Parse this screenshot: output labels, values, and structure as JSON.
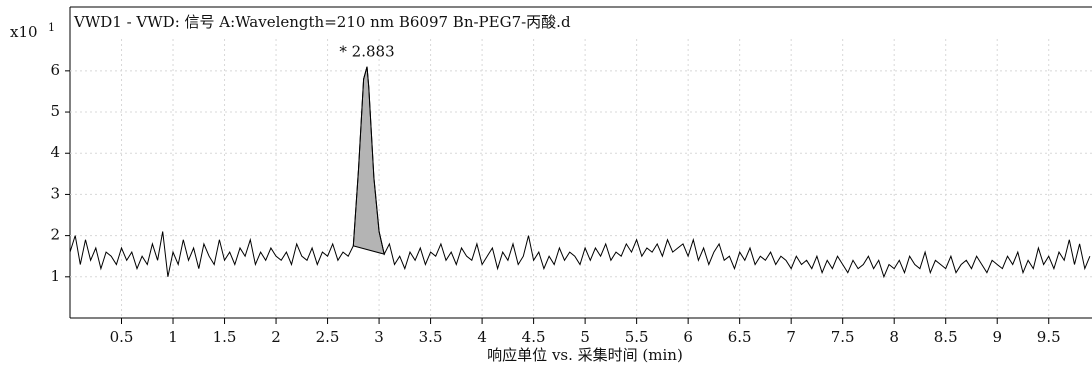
{
  "chart_data": {
    "type": "line",
    "title": "VWD1 - VWD: 信号 A:Wavelength=210 nm B6097 Bn-PEG7-丙酸.d",
    "y_label": "x10",
    "y_label_exponent": "1",
    "x_label": "响应单位 vs. 采集时间 (min)",
    "xlim": [
      0,
      9.92
    ],
    "ylim": [
      0,
      7.55
    ],
    "xticks": [
      0.5,
      1,
      1.5,
      2,
      2.5,
      3,
      3.5,
      4,
      4.5,
      5,
      5.5,
      6,
      6.5,
      7,
      7.5,
      8,
      8.5,
      9,
      9.5
    ],
    "yticks": [
      1,
      2,
      3,
      4,
      5,
      6
    ],
    "grid": true,
    "color": "#000000",
    "shade_color": "#b4b4b4",
    "shaded_peak": {
      "x_start": 2.75,
      "x_end": 3.05
    },
    "annotations": [
      {
        "text": "* 2.883",
        "x": 2.883,
        "y": 6.1
      }
    ],
    "x": [
      0,
      0.05,
      0.1,
      0.15,
      0.2,
      0.25,
      0.3,
      0.35,
      0.4,
      0.45,
      0.5,
      0.55,
      0.6,
      0.65,
      0.7,
      0.75,
      0.8,
      0.85,
      0.9,
      0.95,
      1.0,
      1.05,
      1.1,
      1.15,
      1.2,
      1.25,
      1.3,
      1.35,
      1.4,
      1.45,
      1.5,
      1.55,
      1.6,
      1.65,
      1.7,
      1.75,
      1.8,
      1.85,
      1.9,
      1.95,
      2.0,
      2.05,
      2.1,
      2.15,
      2.2,
      2.25,
      2.3,
      2.35,
      2.4,
      2.45,
      2.5,
      2.55,
      2.6,
      2.65,
      2.7,
      2.75,
      2.8,
      2.85,
      2.883,
      2.9,
      2.95,
      3.0,
      3.05,
      3.1,
      3.15,
      3.2,
      3.25,
      3.3,
      3.35,
      3.4,
      3.45,
      3.5,
      3.55,
      3.6,
      3.65,
      3.7,
      3.75,
      3.8,
      3.85,
      3.9,
      3.95,
      4.0,
      4.05,
      4.1,
      4.15,
      4.2,
      4.25,
      4.3,
      4.35,
      4.4,
      4.45,
      4.5,
      4.55,
      4.6,
      4.65,
      4.7,
      4.75,
      4.8,
      4.85,
      4.9,
      4.95,
      5.0,
      5.05,
      5.1,
      5.15,
      5.2,
      5.25,
      5.3,
      5.35,
      5.4,
      5.45,
      5.5,
      5.55,
      5.6,
      5.65,
      5.7,
      5.75,
      5.8,
      5.85,
      5.9,
      5.95,
      6.0,
      6.05,
      6.1,
      6.15,
      6.2,
      6.25,
      6.3,
      6.35,
      6.4,
      6.45,
      6.5,
      6.55,
      6.6,
      6.65,
      6.7,
      6.75,
      6.8,
      6.85,
      6.9,
      6.95,
      7.0,
      7.05,
      7.1,
      7.15,
      7.2,
      7.25,
      7.3,
      7.35,
      7.4,
      7.45,
      7.5,
      7.55,
      7.6,
      7.65,
      7.7,
      7.75,
      7.8,
      7.85,
      7.9,
      7.95,
      8.0,
      8.05,
      8.1,
      8.15,
      8.2,
      8.25,
      8.3,
      8.35,
      8.4,
      8.45,
      8.5,
      8.55,
      8.6,
      8.65,
      8.7,
      8.75,
      8.8,
      8.85,
      8.9,
      8.95,
      9.0,
      9.05,
      9.1,
      9.15,
      9.2,
      9.25,
      9.3,
      9.35,
      9.4,
      9.45,
      9.5,
      9.55,
      9.6,
      9.65,
      9.7,
      9.75,
      9.8,
      9.85,
      9.9
    ],
    "values": [
      1.6,
      2.0,
      1.3,
      1.9,
      1.4,
      1.7,
      1.2,
      1.6,
      1.5,
      1.3,
      1.7,
      1.4,
      1.6,
      1.2,
      1.5,
      1.3,
      1.8,
      1.4,
      2.1,
      1.0,
      1.6,
      1.3,
      1.9,
      1.4,
      1.7,
      1.2,
      1.8,
      1.5,
      1.3,
      1.9,
      1.4,
      1.6,
      1.3,
      1.7,
      1.5,
      1.9,
      1.3,
      1.6,
      1.4,
      1.7,
      1.5,
      1.4,
      1.6,
      1.3,
      1.8,
      1.5,
      1.4,
      1.7,
      1.3,
      1.6,
      1.5,
      1.8,
      1.4,
      1.6,
      1.5,
      1.75,
      3.6,
      5.8,
      6.1,
      5.6,
      3.4,
      2.1,
      1.55,
      1.8,
      1.3,
      1.5,
      1.2,
      1.6,
      1.4,
      1.7,
      1.3,
      1.6,
      1.5,
      1.8,
      1.4,
      1.6,
      1.3,
      1.7,
      1.5,
      1.4,
      1.8,
      1.3,
      1.5,
      1.7,
      1.2,
      1.6,
      1.4,
      1.8,
      1.3,
      1.5,
      2.0,
      1.4,
      1.6,
      1.2,
      1.5,
      1.3,
      1.7,
      1.4,
      1.6,
      1.5,
      1.3,
      1.7,
      1.4,
      1.7,
      1.5,
      1.8,
      1.4,
      1.6,
      1.5,
      1.8,
      1.6,
      1.9,
      1.5,
      1.7,
      1.6,
      1.8,
      1.5,
      1.9,
      1.6,
      1.7,
      1.8,
      1.5,
      1.9,
      1.4,
      1.7,
      1.3,
      1.6,
      1.8,
      1.4,
      1.5,
      1.2,
      1.6,
      1.4,
      1.7,
      1.3,
      1.5,
      1.4,
      1.6,
      1.3,
      1.5,
      1.4,
      1.2,
      1.5,
      1.3,
      1.4,
      1.2,
      1.5,
      1.1,
      1.4,
      1.2,
      1.5,
      1.3,
      1.1,
      1.4,
      1.2,
      1.3,
      1.5,
      1.2,
      1.4,
      1.0,
      1.3,
      1.2,
      1.4,
      1.1,
      1.5,
      1.3,
      1.2,
      1.6,
      1.1,
      1.4,
      1.3,
      1.2,
      1.5,
      1.1,
      1.3,
      1.4,
      1.2,
      1.5,
      1.3,
      1.1,
      1.4,
      1.3,
      1.2,
      1.5,
      1.3,
      1.6,
      1.1,
      1.4,
      1.2,
      1.7,
      1.3,
      1.5,
      1.2,
      1.6,
      1.4,
      1.9,
      1.3,
      1.8,
      1.2,
      1.5
    ]
  }
}
